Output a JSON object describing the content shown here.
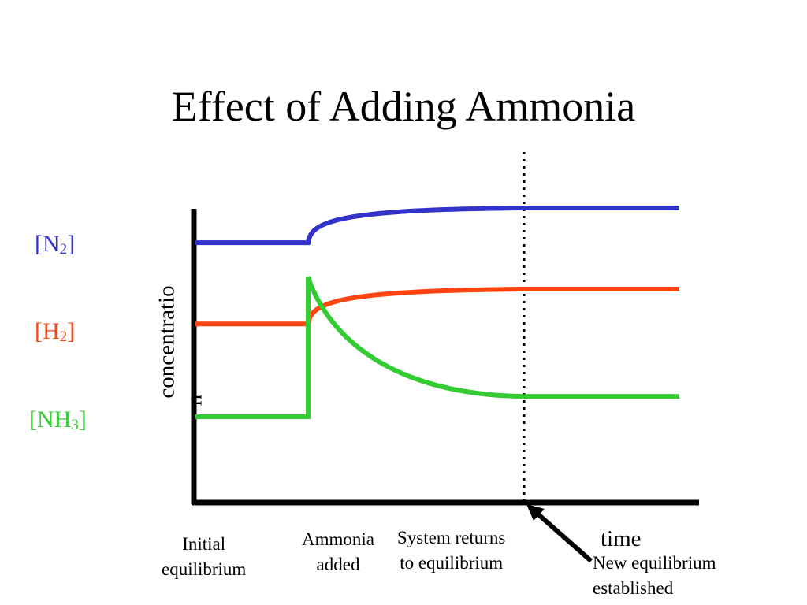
{
  "title": "Effect of Adding Ammonia",
  "chart_data": {
    "type": "line",
    "ylabel": "concentration",
    "xlabel": "time",
    "grid": false,
    "series": [
      {
        "name": "N2",
        "display": "[N2]",
        "color": "#3333cc",
        "initial": 0.88,
        "jump": 0.0,
        "final": 1.0
      },
      {
        "name": "H2",
        "display": "[H2]",
        "color": "#ff4411",
        "initial": 0.6,
        "jump": 0.0,
        "final": 0.72
      },
      {
        "name": "NH3",
        "display": "[NH3]",
        "color": "#33cc33",
        "initial": 0.28,
        "jump": 0.48,
        "final": 0.35
      }
    ],
    "events": {
      "initial": "Initial equilibrium",
      "ammonia_added": "Ammonia added",
      "returns": "System returns to equilibrium",
      "new_equilibrium": "New equilibrium established"
    }
  },
  "labels": {
    "n2": {
      "bracket_open": "[N",
      "sub": "2",
      "bracket_close": "]"
    },
    "h2": {
      "bracket_open": "[H",
      "sub": "2",
      "bracket_close": "]"
    },
    "nh3": {
      "bracket_open": "[NH",
      "sub": "3",
      "bracket_close": "]"
    }
  },
  "axis": {
    "y_text_main": "concentratio",
    "y_text_tail": "n",
    "x_text": "time"
  },
  "captions": {
    "initial_line1": "Initial",
    "initial_line2": "equilibrium",
    "added_line1": "Ammonia",
    "added_line2": "added",
    "returns_line1": "System returns",
    "returns_line2": "to equilibrium",
    "new_line1": "New equilibrium",
    "new_line2": "established"
  }
}
